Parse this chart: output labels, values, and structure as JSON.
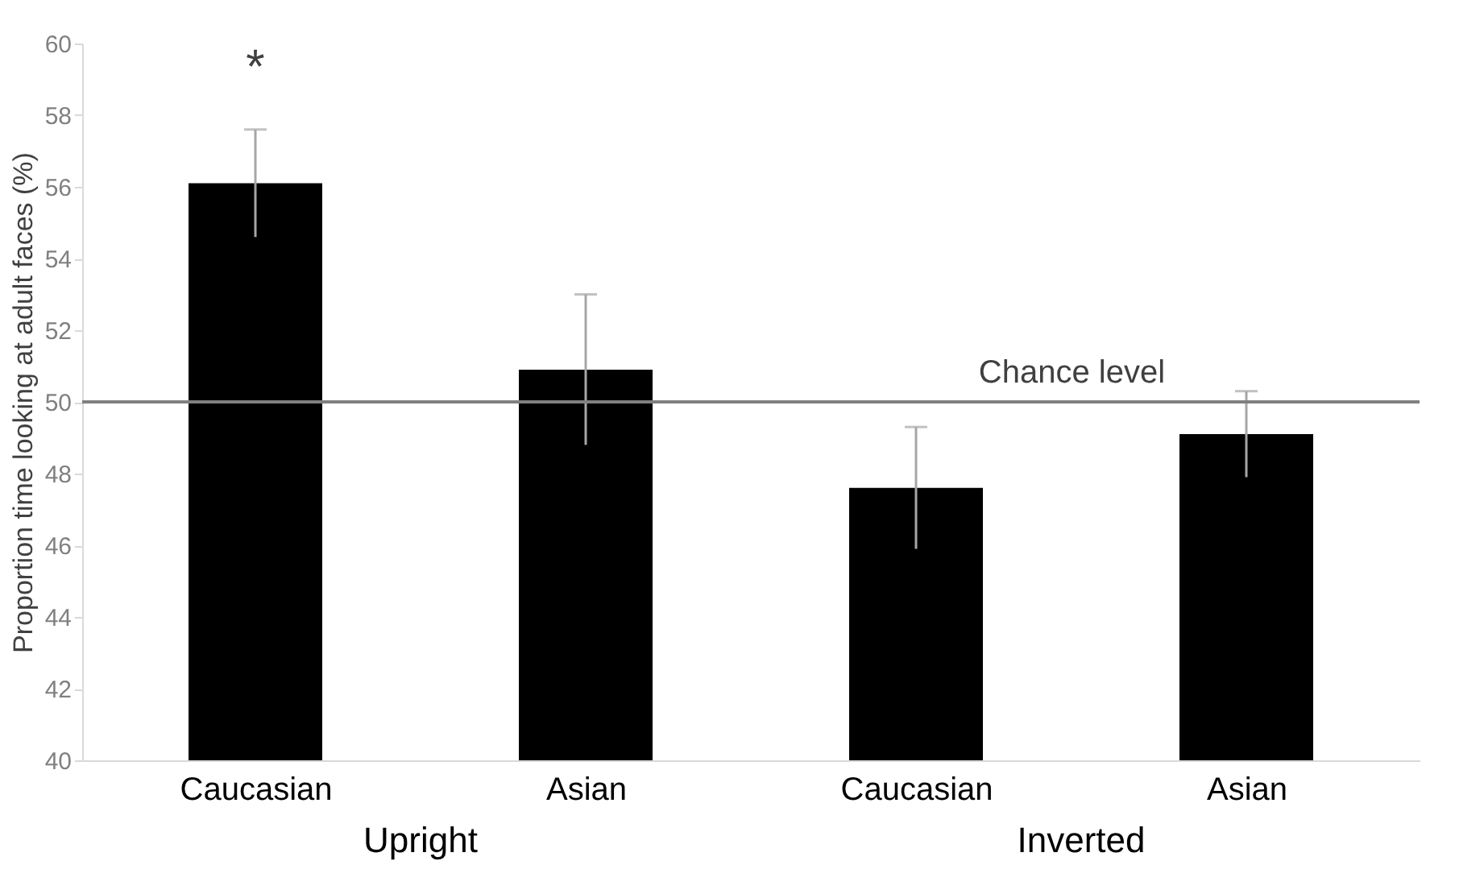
{
  "chart_data": {
    "type": "bar",
    "ylabel": "Proportion time looking at adult faces (%)",
    "categories": [
      "Caucasian",
      "Asian",
      "Caucasian",
      "Asian"
    ],
    "values": [
      56.1,
      50.9,
      47.6,
      49.1
    ],
    "errors": [
      1.5,
      2.1,
      1.7,
      1.2
    ],
    "color": "#000000",
    "ylim": [
      40,
      60
    ],
    "yticks": [
      40,
      42,
      44,
      46,
      48,
      50,
      52,
      54,
      56,
      58,
      60
    ],
    "grid": false,
    "ref_lines": [
      {
        "axis": "y",
        "value": 50,
        "label": "Chance level",
        "color": "#808080"
      }
    ],
    "annotations": [
      {
        "text": "*",
        "x": "Caucasian",
        "y": 57.6
      },
      "Upright",
      "Inverted"
    ]
  }
}
